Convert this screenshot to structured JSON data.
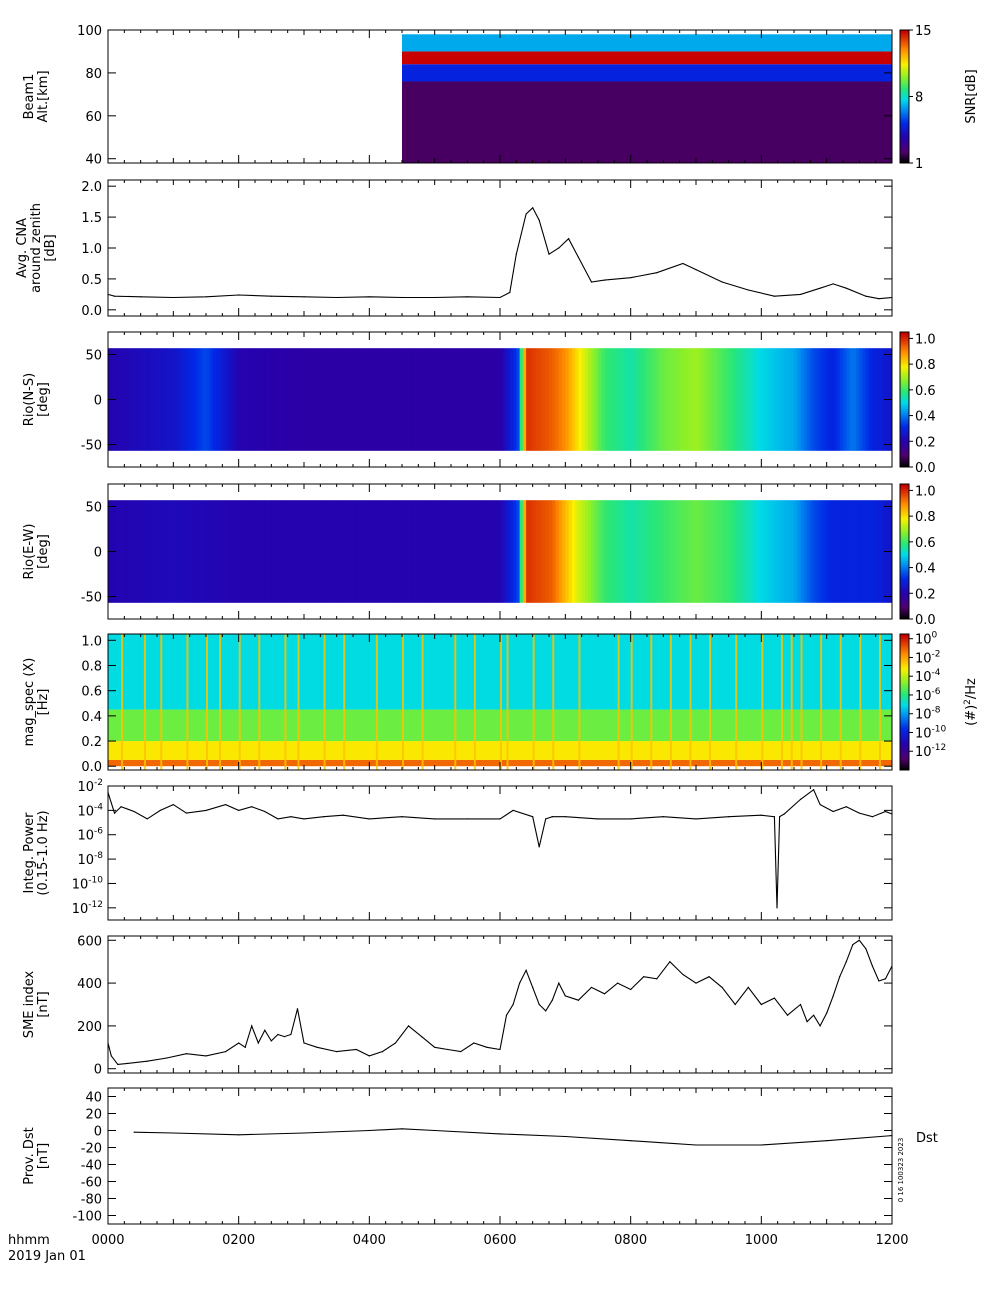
{
  "chart_data": [
    {
      "type": "heatmap",
      "ylabel_lines": [
        "Beam1",
        "Alt.[km]"
      ],
      "ylim": [
        38,
        100
      ],
      "yticks": [
        "40",
        "60",
        "80",
        "100"
      ],
      "ytick_values": [
        40,
        60,
        80,
        100
      ],
      "colorbar": {
        "label": "SNR[dB]",
        "ticks": [
          "1",
          "8",
          "15"
        ],
        "tick_values": [
          1,
          8,
          15
        ],
        "range": [
          1,
          15
        ],
        "colormap": "rainbow"
      },
      "data_start_time": "0450",
      "bands": [
        {
          "alt_range": [
            84,
            90
          ],
          "value": 15
        },
        {
          "alt_range": [
            90,
            98
          ],
          "value": 7
        },
        {
          "alt_range": [
            76,
            84
          ],
          "value": 5
        },
        {
          "alt_range": [
            38,
            76
          ],
          "value": 2
        }
      ]
    },
    {
      "type": "line",
      "ylabel_lines": [
        "Avg. CNA",
        "around zenith",
        "[dB]"
      ],
      "ylim": [
        -0.1,
        2.1
      ],
      "yticks": [
        "0.0",
        "0.5",
        "1.0",
        "1.5",
        "2.0"
      ],
      "ytick_values": [
        0,
        0.5,
        1.0,
        1.5,
        2.0
      ],
      "x": [
        0,
        10,
        50,
        100,
        150,
        200,
        250,
        300,
        350,
        400,
        450,
        500,
        550,
        600,
        615,
        625,
        640,
        650,
        660,
        675,
        690,
        705,
        720,
        740,
        760,
        800,
        840,
        880,
        900,
        940,
        980,
        1020,
        1060,
        1090,
        1110,
        1130,
        1160,
        1180,
        1200
      ],
      "y": [
        0.25,
        0.22,
        0.21,
        0.2,
        0.21,
        0.24,
        0.22,
        0.21,
        0.2,
        0.21,
        0.2,
        0.2,
        0.21,
        0.2,
        0.28,
        0.9,
        1.55,
        1.65,
        1.45,
        0.9,
        1.0,
        1.15,
        0.85,
        0.45,
        0.48,
        0.52,
        0.6,
        0.75,
        0.65,
        0.45,
        0.32,
        0.22,
        0.25,
        0.35,
        0.42,
        0.35,
        0.22,
        0.18,
        0.2
      ]
    },
    {
      "type": "heatmap",
      "ylabel_lines": [
        "Rio(N-S)",
        "[deg]"
      ],
      "ylim": [
        -75,
        75
      ],
      "yticks": [
        "-50",
        "0",
        "50"
      ],
      "ytick_values": [
        -50,
        0,
        50
      ],
      "colorbar": {
        "ticks": [
          "0.0",
          "0.2",
          "0.4",
          "0.6",
          "0.8",
          "1.0"
        ],
        "tick_values": [
          0,
          0.2,
          0.4,
          0.6,
          0.8,
          1.0
        ],
        "range": [
          0,
          1.05
        ],
        "colormap": "rainbow"
      },
      "band_range": [
        -57,
        57
      ],
      "columns_time": [
        0,
        100,
        150,
        200,
        300,
        400,
        500,
        600,
        628,
        640,
        680,
        700,
        720,
        760,
        800,
        850,
        900,
        950,
        1000,
        1050,
        1080,
        1110,
        1140,
        1170,
        1200
      ],
      "columns_value": [
        0.2,
        0.25,
        0.35,
        0.2,
        0.18,
        0.18,
        0.18,
        0.18,
        0.35,
        1.0,
        0.95,
        0.9,
        0.8,
        0.6,
        0.55,
        0.65,
        0.7,
        0.6,
        0.5,
        0.45,
        0.35,
        0.3,
        0.4,
        0.3,
        0.25
      ]
    },
    {
      "type": "heatmap",
      "ylabel_lines": [
        "Rio(E-W)",
        "[deg]"
      ],
      "ylim": [
        -75,
        75
      ],
      "yticks": [
        "-50",
        "0",
        "50"
      ],
      "ytick_values": [
        -50,
        0,
        50
      ],
      "colorbar": {
        "ticks": [
          "0.0",
          "0.2",
          "0.4",
          "0.6",
          "0.8",
          "1.0"
        ],
        "tick_values": [
          0,
          0.2,
          0.4,
          0.6,
          0.8,
          1.0
        ],
        "range": [
          0,
          1.05
        ],
        "colormap": "rainbow"
      },
      "band_range": [
        -57,
        57
      ],
      "columns_time": [
        0,
        100,
        200,
        300,
        400,
        500,
        600,
        628,
        640,
        680,
        700,
        720,
        760,
        800,
        850,
        900,
        950,
        1000,
        1050,
        1080,
        1110,
        1140,
        1170,
        1200
      ],
      "columns_value": [
        0.2,
        0.22,
        0.2,
        0.2,
        0.2,
        0.2,
        0.2,
        0.35,
        1.0,
        0.95,
        0.85,
        0.75,
        0.6,
        0.55,
        0.6,
        0.65,
        0.6,
        0.5,
        0.45,
        0.35,
        0.3,
        0.3,
        0.3,
        0.25
      ]
    },
    {
      "type": "heatmap",
      "ylabel_lines": [
        "mag_spec (X)",
        "[Hz]"
      ],
      "ylim": [
        -0.03,
        1.05
      ],
      "yticks": [
        "0.0",
        "0.2",
        "0.4",
        "0.6",
        "0.8",
        "1.0"
      ],
      "ytick_values": [
        0,
        0.2,
        0.4,
        0.6,
        0.8,
        1.0
      ],
      "colorbar": {
        "label": "(#)^2/Hz",
        "ticks": [
          "10^0",
          "10^-2",
          "10^-4",
          "10^-6",
          "10^-8",
          "10^-10",
          "10^-12"
        ],
        "tick_values": [
          0,
          -2,
          -4,
          -6,
          -8,
          -10,
          -12
        ],
        "range": [
          -14,
          0.5
        ],
        "colormap": "rainbow"
      },
      "freq_bands": [
        {
          "freq_range": [
            0.0,
            0.05
          ],
          "log_power": -1
        },
        {
          "freq_range": [
            0.05,
            0.2
          ],
          "log_power": -3
        },
        {
          "freq_range": [
            0.2,
            0.45
          ],
          "log_power": -5
        },
        {
          "freq_range": [
            0.45,
            1.05
          ],
          "log_power": -7
        }
      ],
      "spikes_time": [
        20,
        55,
        80,
        120,
        150,
        170,
        200,
        230,
        270,
        290,
        330,
        360,
        410,
        450,
        480,
        530,
        560,
        600,
        610,
        650,
        680,
        720,
        780,
        800,
        830,
        860,
        890,
        920,
        960,
        1000,
        1030,
        1045,
        1060,
        1090,
        1120,
        1150,
        1180
      ]
    },
    {
      "type": "line",
      "ylabel_lines": [
        "Integ. Power",
        "(0.15-1.0 Hz)"
      ],
      "yscale": "log",
      "ylim": [
        1e-13,
        0.01
      ],
      "yticks": [
        "10^-2",
        "10^-4",
        "10^-6",
        "10^-8",
        "10^-10",
        "10^-12"
      ],
      "ytick_values": [
        0.01,
        0.0001,
        1e-06,
        1e-08,
        1e-10,
        1e-12
      ],
      "x": [
        0,
        10,
        20,
        40,
        60,
        80,
        100,
        120,
        150,
        180,
        200,
        220,
        240,
        260,
        280,
        300,
        330,
        360,
        400,
        450,
        500,
        550,
        600,
        620,
        650,
        660,
        670,
        680,
        700,
        750,
        800,
        850,
        900,
        950,
        1000,
        1020,
        1024,
        1028,
        1035,
        1060,
        1080,
        1090,
        1110,
        1130,
        1150,
        1170,
        1190,
        1200
      ],
      "y": [
        0.003,
        6e-05,
        0.0002,
        8e-05,
        2e-05,
        0.0001,
        0.0003,
        6e-05,
        0.0001,
        0.0003,
        0.0001,
        0.0002,
        8e-05,
        2e-05,
        3e-05,
        2e-05,
        3e-05,
        4e-05,
        2e-05,
        3e-05,
        2e-05,
        2e-05,
        2e-05,
        0.0001,
        3e-05,
        1e-07,
        2e-05,
        3e-05,
        3e-05,
        2e-05,
        2e-05,
        3e-05,
        2e-05,
        3e-05,
        4e-05,
        3e-05,
        1e-12,
        3e-05,
        5e-05,
        0.0008,
        0.005,
        0.0003,
        8e-05,
        0.0002,
        6e-05,
        3e-05,
        8e-05,
        5e-05
      ]
    },
    {
      "type": "line",
      "ylabel_lines": [
        "SME index",
        "[nT]"
      ],
      "ylim": [
        -20,
        620
      ],
      "yticks": [
        "0",
        "200",
        "400",
        "600"
      ],
      "ytick_values": [
        0,
        200,
        400,
        600
      ],
      "x": [
        0,
        5,
        15,
        30,
        60,
        90,
        120,
        150,
        180,
        200,
        210,
        220,
        230,
        240,
        250,
        260,
        270,
        280,
        290,
        300,
        320,
        350,
        380,
        400,
        420,
        440,
        460,
        480,
        500,
        520,
        540,
        560,
        580,
        600,
        610,
        620,
        630,
        640,
        650,
        660,
        670,
        680,
        690,
        700,
        720,
        740,
        760,
        780,
        800,
        820,
        840,
        860,
        880,
        900,
        920,
        940,
        960,
        980,
        1000,
        1020,
        1040,
        1060,
        1070,
        1080,
        1090,
        1100,
        1110,
        1120,
        1130,
        1140,
        1150,
        1160,
        1170,
        1180,
        1190,
        1200
      ],
      "y": [
        120,
        60,
        20,
        25,
        35,
        50,
        70,
        60,
        80,
        120,
        100,
        200,
        120,
        180,
        130,
        160,
        150,
        160,
        280,
        120,
        100,
        80,
        90,
        60,
        80,
        120,
        200,
        150,
        100,
        90,
        80,
        120,
        100,
        90,
        250,
        300,
        400,
        460,
        380,
        300,
        270,
        320,
        400,
        340,
        320,
        380,
        350,
        400,
        370,
        430,
        420,
        500,
        440,
        400,
        430,
        380,
        300,
        380,
        300,
        330,
        250,
        300,
        220,
        250,
        200,
        260,
        340,
        430,
        500,
        580,
        600,
        560,
        480,
        410,
        420,
        480
      ]
    },
    {
      "type": "line",
      "ylabel_lines": [
        "Prov. Dst",
        "[nT]"
      ],
      "ylim": [
        -110,
        50
      ],
      "yticks": [
        "-100",
        "-80",
        "-60",
        "-40",
        "-20",
        "0",
        "20",
        "40"
      ],
      "ytick_values": [
        -100,
        -80,
        -60,
        -40,
        -20,
        0,
        20,
        40
      ],
      "x": [
        40,
        100,
        200,
        300,
        400,
        450,
        500,
        600,
        700,
        800,
        900,
        1000,
        1100,
        1200
      ],
      "y": [
        -2,
        -3,
        -5,
        -3,
        0,
        2,
        0,
        -4,
        -7,
        -12,
        -17,
        -17,
        -12,
        -6
      ],
      "series_label": "Dst",
      "side_note": "0 16 100323 2023"
    }
  ],
  "xaxis": {
    "ticks": [
      "0000",
      "0200",
      "0400",
      "0600",
      "0800",
      "1000",
      "1200"
    ],
    "tick_values": [
      0,
      200,
      400,
      600,
      800,
      1000,
      1200
    ],
    "range": [
      0,
      1200
    ],
    "unit_label": "hhmm",
    "date_label": "2019 Jan 01"
  }
}
